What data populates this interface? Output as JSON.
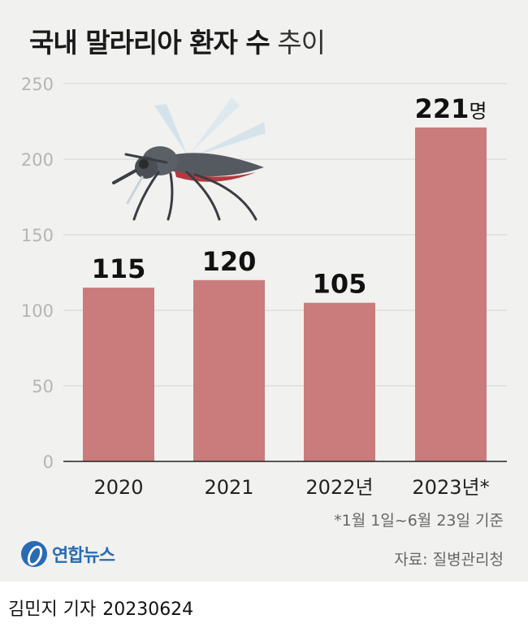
{
  "title": {
    "bold": "국내 말라리아 환자 수",
    "light": "추이"
  },
  "chart_data": {
    "type": "bar",
    "categories": [
      "2020",
      "2021",
      "2022년",
      "2023년*"
    ],
    "values": [
      115,
      120,
      105,
      221
    ],
    "value_labels": [
      "115",
      "120",
      "105",
      "221"
    ],
    "value_unit_suffix": "명",
    "yticks": [
      "0",
      "50",
      "100",
      "150",
      "200",
      "250"
    ],
    "ylim": [
      0,
      250
    ],
    "grid": true,
    "legend": "none",
    "bar_color": "#c97c7b"
  },
  "note": "*1월 1일~6월 23일 기준",
  "source": "자료: 질병관리청",
  "logo": {
    "name": "연합뉴스",
    "color": "#2a6ab5"
  },
  "byline": {
    "author": "김민지 기자",
    "date": "20230624"
  },
  "illustration": {
    "icon": "mosquito-icon"
  }
}
